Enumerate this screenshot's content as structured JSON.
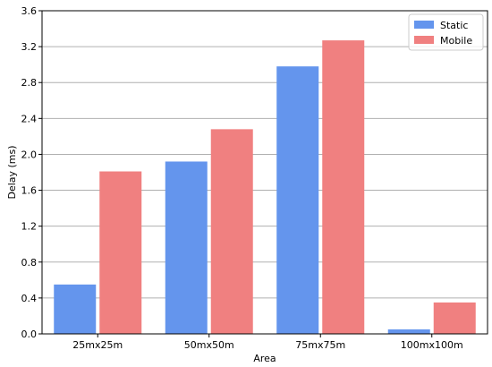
{
  "chart_data": {
    "type": "bar",
    "categories": [
      "25mx25m",
      "50mx50m",
      "75mx75m",
      "100mx100m"
    ],
    "series": [
      {
        "name": "Static",
        "color": "#6495ED",
        "values": [
          0.55,
          1.92,
          2.98,
          0.05
        ]
      },
      {
        "name": "Mobile",
        "color": "#F08080",
        "values": [
          1.81,
          2.28,
          3.27,
          0.35
        ]
      }
    ],
    "title": "",
    "xlabel": "Area",
    "ylabel": "Delay (ms)",
    "ylim": [
      0,
      3.6
    ],
    "yticks": [
      "0.0",
      "0.4",
      "0.8",
      "1.2",
      "1.6",
      "2.0",
      "2.4",
      "2.8",
      "3.2",
      "3.6"
    ],
    "grid": "horizontal",
    "legend_position": "top-right"
  }
}
